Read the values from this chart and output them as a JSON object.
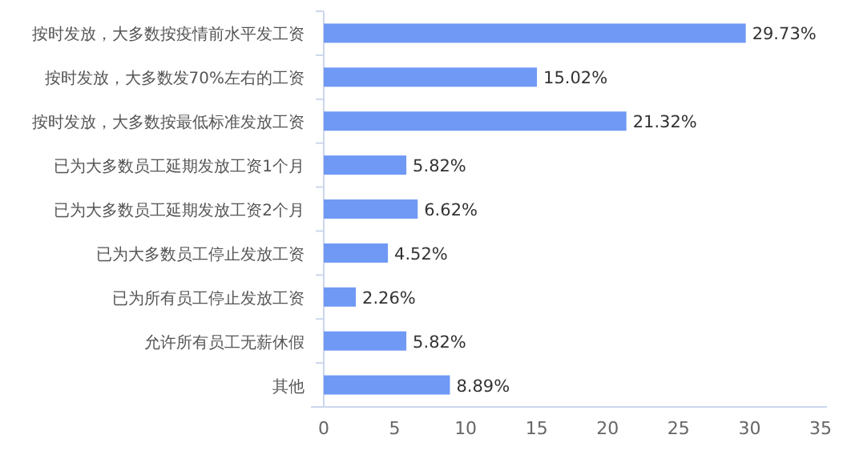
{
  "chart_data": {
    "type": "bar",
    "orientation": "horizontal",
    "categories": [
      "按时发放，大多数按疫情前水平发工资",
      "按时发放，大多数发70%左右的工资",
      "按时发放，大多数按最低标准发放工资",
      "已为大多数员工延期发放工资1个月",
      "已为大多数员工延期发放工资2个月",
      "已为大多数员工停止发放工资",
      "已为所有员工停止发放工资",
      "允许所有员工无薪休假",
      "其他"
    ],
    "values": [
      29.73,
      15.02,
      21.32,
      5.82,
      6.62,
      4.52,
      2.26,
      5.82,
      8.89
    ],
    "value_labels": [
      "29.73%",
      "15.02%",
      "21.32%",
      "5.82%",
      "6.62%",
      "4.52%",
      "2.26%",
      "5.82%",
      "8.89%"
    ],
    "color": "#7099f5",
    "xlim": [
      0,
      35
    ],
    "xticks": [
      0,
      5,
      10,
      15,
      20,
      25,
      30,
      35
    ],
    "grid": false
  }
}
